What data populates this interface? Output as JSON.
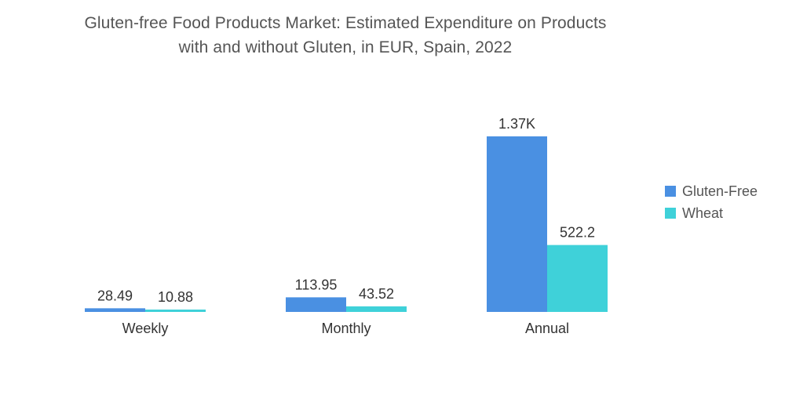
{
  "chart_data": {
    "type": "bar",
    "title_line1": "Gluten-free Food Products Market: Estimated Expenditure on Products",
    "title_line2": "with and without Gluten, in EUR, Spain, 2022",
    "categories": [
      "Weekly",
      "Monthly",
      "Annual"
    ],
    "series": [
      {
        "name": "Gluten-Free",
        "color": "#4a90e2",
        "values": [
          28.49,
          113.95,
          1370
        ],
        "labels": [
          "28.49",
          "113.95",
          "1.37K"
        ]
      },
      {
        "name": "Wheat",
        "color": "#3fd1d9",
        "values": [
          10.88,
          43.52,
          522.2
        ],
        "labels": [
          "10.88",
          "43.52",
          "522.2"
        ]
      }
    ],
    "xlabel": "",
    "ylabel": "",
    "ylim": [
      0,
      1370
    ],
    "grid": false,
    "legend_position": "right"
  }
}
